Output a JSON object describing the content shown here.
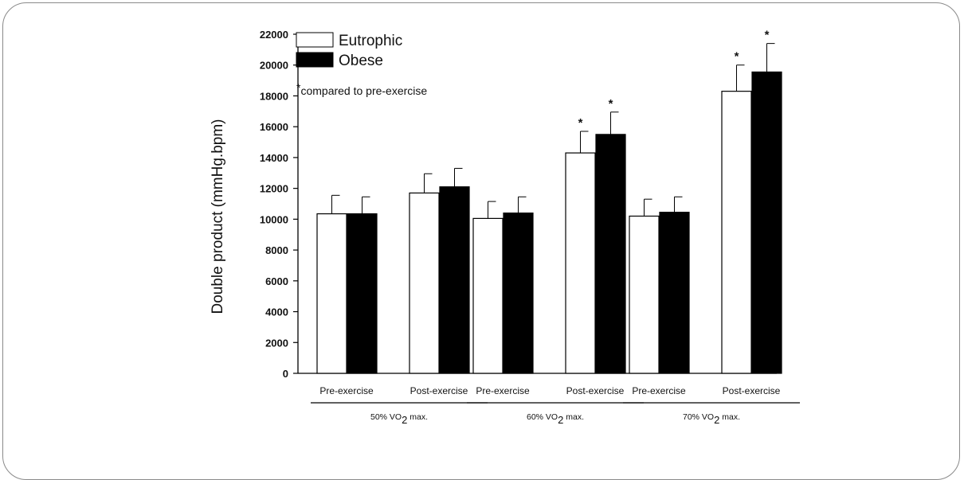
{
  "chart_data": {
    "type": "bar",
    "ylabel": "Double product (mmHg.bpm)",
    "ylim": [
      0,
      22000
    ],
    "yticks": [
      "0",
      "2000",
      "4000",
      "6000",
      "8000",
      "10000",
      "12000",
      "14000",
      "16000",
      "18000",
      "20000",
      "22000"
    ],
    "groups": [
      {
        "label_prefix": "50% VO",
        "label_sub": "2",
        "label_suffix": " max."
      },
      {
        "label_prefix": "60% VO",
        "label_sub": "2",
        "label_suffix": " max."
      },
      {
        "label_prefix": "70% VO",
        "label_sub": "2",
        "label_suffix": " max."
      }
    ],
    "conditions": [
      "Pre-exercise",
      "Post-exercise"
    ],
    "series": [
      {
        "name": "Eutrophic",
        "color": "#ffffff",
        "values": [
          10350,
          11700,
          10050,
          14300,
          10200,
          18300
        ],
        "errors": [
          1200,
          1250,
          1100,
          1400,
          1100,
          1700
        ],
        "significant": [
          false,
          false,
          false,
          true,
          false,
          true
        ]
      },
      {
        "name": "Obese",
        "color": "#000000",
        "values": [
          10350,
          12100,
          10400,
          15500,
          10450,
          19550
        ],
        "errors": [
          1100,
          1200,
          1050,
          1450,
          1000,
          1850
        ],
        "significant": [
          false,
          false,
          false,
          true,
          false,
          true
        ]
      }
    ],
    "significance_marker": "*",
    "legend": {
      "position": "top-left",
      "note_marker": "*",
      "note_text": "compared to pre-exercise"
    },
    "grid": false
  }
}
